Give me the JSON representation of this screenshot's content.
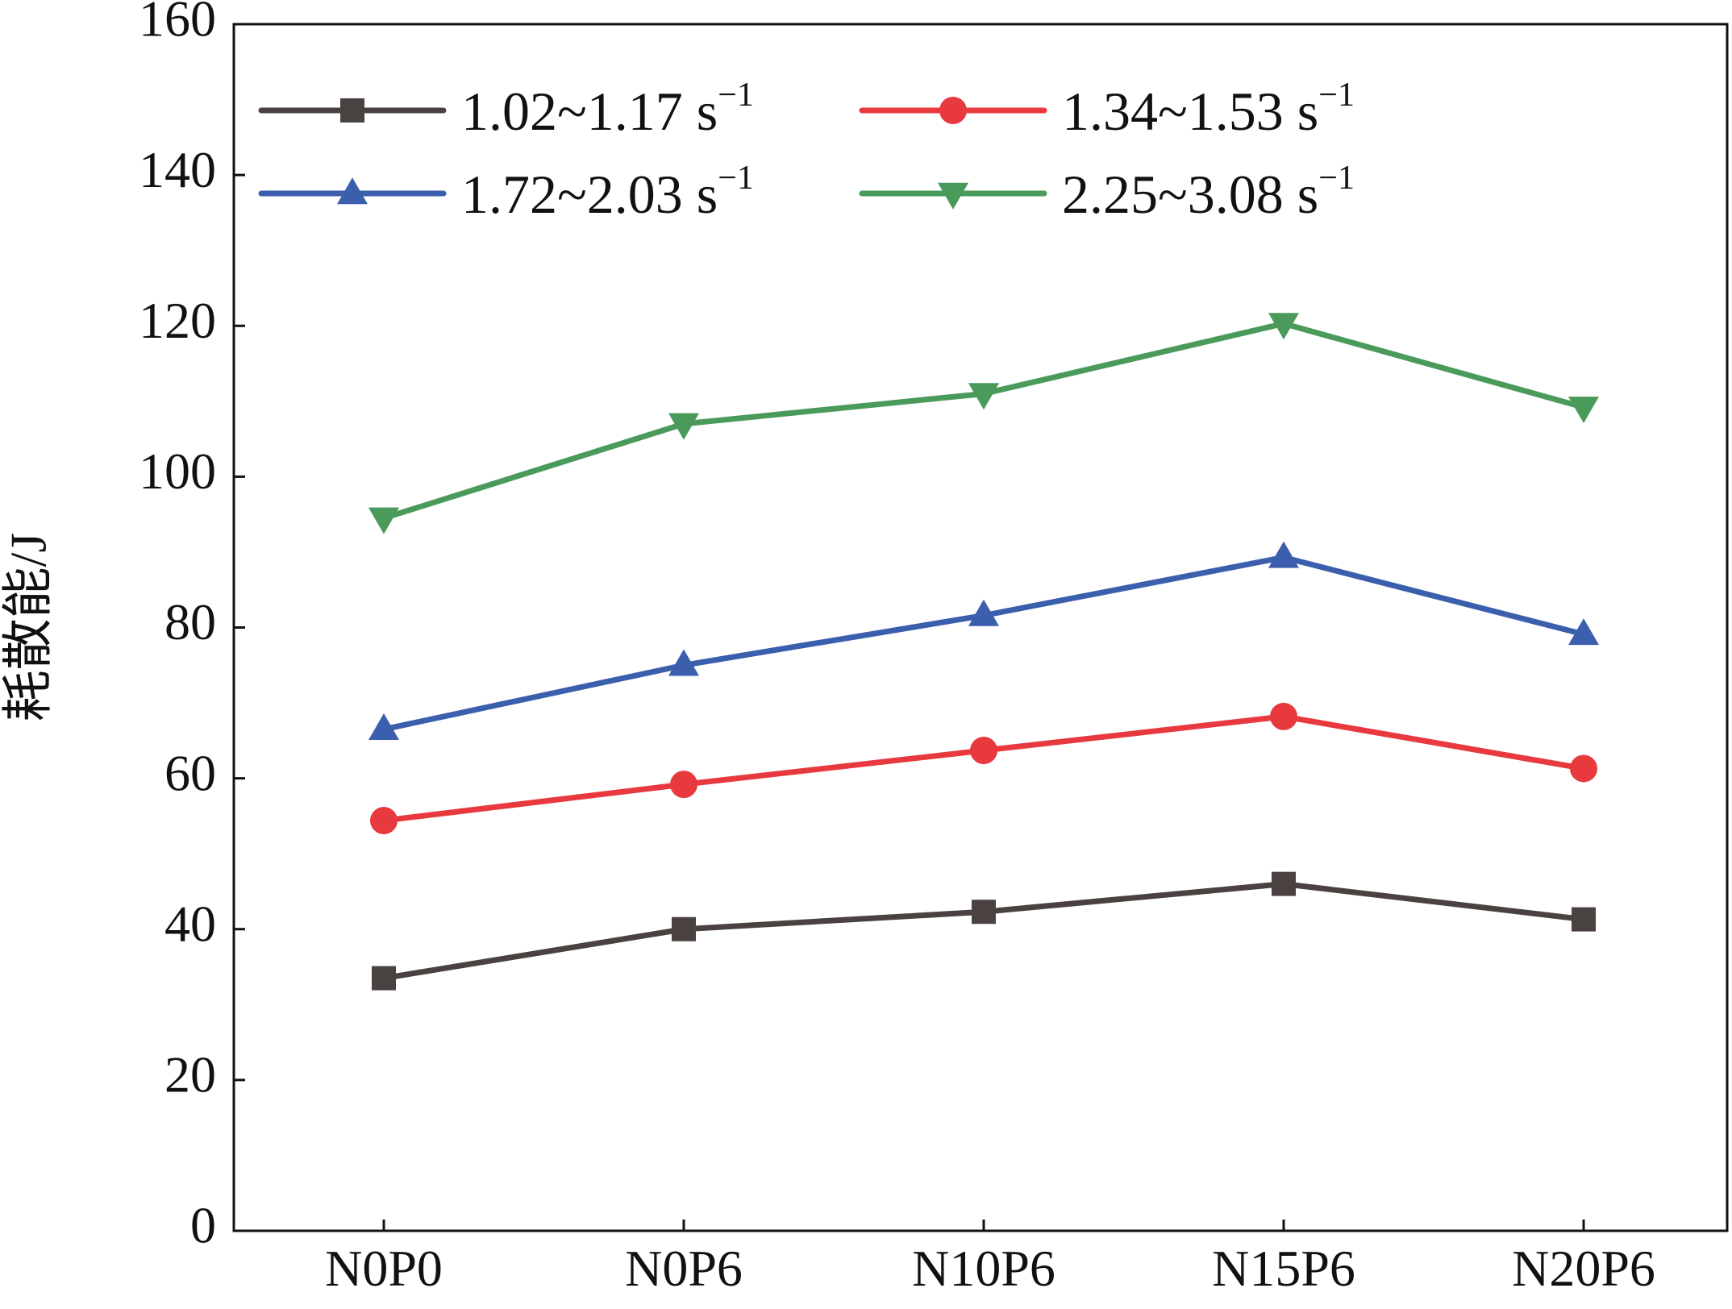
{
  "chart_data": {
    "type": "line",
    "title": "",
    "xlabel": "",
    "ylabel": "耗散能/J",
    "categories": [
      "N0P0",
      "N0P6",
      "N10P6",
      "N15P6",
      "N20P6"
    ],
    "ylim": [
      0,
      160
    ],
    "yticks": [
      0,
      20,
      40,
      60,
      80,
      100,
      120,
      140,
      160
    ],
    "grid": false,
    "legend": {
      "placement": "top",
      "columns": 2
    },
    "series": [
      {
        "name": "1.02~1.17 s",
        "superscript": "−1",
        "color": "#4a4240",
        "marker": "square",
        "values": [
          33.5,
          40.0,
          42.3,
          46.0,
          41.3
        ]
      },
      {
        "name": "1.34~1.53 s",
        "superscript": "−1",
        "color": "#e8393f",
        "marker": "circle",
        "values": [
          54.4,
          59.2,
          63.7,
          68.2,
          61.3
        ]
      },
      {
        "name": "1.72~2.03 s",
        "superscript": "−1",
        "color": "#3b5fad",
        "marker": "triangle-up",
        "values": [
          66.5,
          75.0,
          81.6,
          89.3,
          79.1
        ]
      },
      {
        "name": "2.25~3.08 s",
        "superscript": "−1",
        "color": "#4a9a5b",
        "marker": "triangle-down",
        "values": [
          94.5,
          107.0,
          111.0,
          120.3,
          109.2
        ]
      }
    ]
  }
}
